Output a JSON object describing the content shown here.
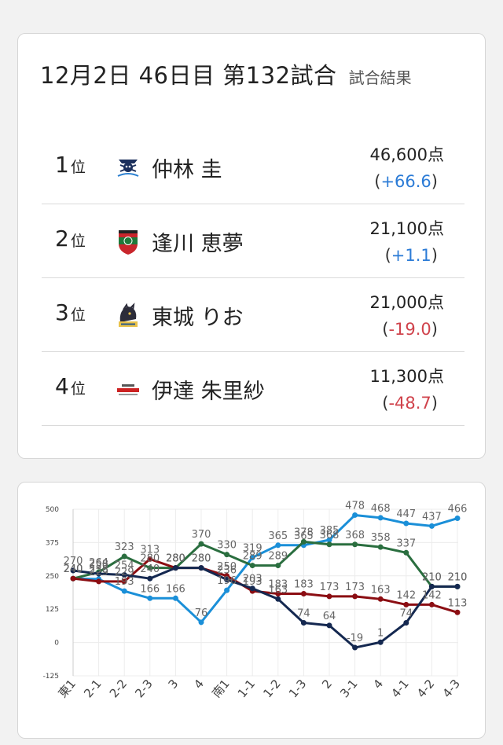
{
  "header": {
    "title": "12月2日  46日目  第132試合",
    "subtitle": "試合結果"
  },
  "results": [
    {
      "rank": "1",
      "rank_suffix": "位",
      "name": "仲林 圭",
      "points": "46,600点",
      "delta": "+66.6",
      "delta_sign": "pos",
      "team_icon": "pirates-team-logo"
    },
    {
      "rank": "2",
      "rank_suffix": "位",
      "name": "逢川 恵夢",
      "points": "21,100点",
      "delta": "+1.1",
      "delta_sign": "pos",
      "team_icon": "jets-team-logo"
    },
    {
      "rank": "3",
      "rank_suffix": "位",
      "name": "東城 りお",
      "points": "21,000点",
      "delta": "-19.0",
      "delta_sign": "neg",
      "team_icon": "beast-team-logo"
    },
    {
      "rank": "4",
      "rank_suffix": "位",
      "name": "伊達 朱里紗",
      "points": "11,300点",
      "delta": "-48.7",
      "delta_sign": "neg",
      "team_icon": "konami-team-logo"
    }
  ],
  "chart_data": {
    "type": "line",
    "categories": [
      "東1",
      "2-1",
      "2-2",
      "2-3",
      "3",
      "4",
      "南1",
      "1-1",
      "1-2",
      "1-3",
      "2",
      "3-1",
      "4",
      "4-1",
      "4-2",
      "4-3"
    ],
    "ylim": [
      -125,
      500
    ],
    "yticks": [
      "500",
      "375",
      "250",
      "125",
      "0",
      "-125"
    ],
    "grid": true,
    "series": [
      {
        "color": "#1a8fd8",
        "values": [
          240,
          238,
          193,
          166,
          166,
          76,
          196,
          319,
          365,
          365,
          385,
          478,
          468,
          447,
          437,
          466
        ]
      },
      {
        "color": "#2a6e3f",
        "values": [
          240,
          264,
          323,
          280,
          280,
          370,
          330,
          289,
          289,
          378,
          368,
          368,
          358,
          337,
          210,
          210
        ]
      },
      {
        "color": "#8b0d12",
        "values": [
          240,
          229,
          229,
          313,
          280,
          280,
          250,
          193,
          183,
          183,
          173,
          173,
          163,
          142,
          142,
          113
        ]
      },
      {
        "color": "#142850",
        "values": [
          270,
          258,
          254,
          240,
          280,
          280,
          236,
          203,
          163,
          74,
          64,
          -19,
          1,
          74,
          210,
          210
        ]
      }
    ]
  }
}
